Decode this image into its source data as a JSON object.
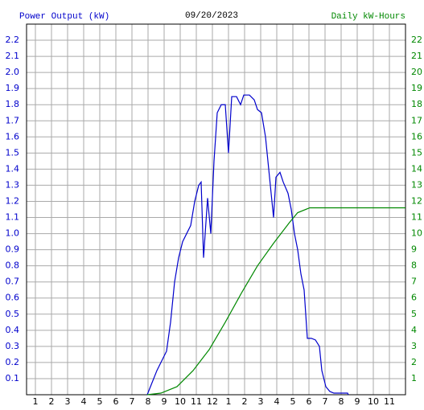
{
  "chart_data": {
    "type": "line",
    "title": "09/20/2023",
    "xlim": [
      0.45,
      24
    ],
    "xticks": [
      1,
      2,
      3,
      4,
      5,
      6,
      7,
      8,
      9,
      10,
      11,
      12,
      {
        "value": 13,
        "label": "1"
      },
      {
        "value": 14,
        "label": "2"
      },
      {
        "value": 15,
        "label": "3"
      },
      {
        "value": 16,
        "label": "4"
      },
      {
        "value": 17,
        "label": "5"
      },
      {
        "value": 18,
        "label": "6"
      },
      {
        "value": 19,
        "label": "7"
      },
      {
        "value": 20,
        "label": "8"
      },
      {
        "value": 21,
        "label": "9"
      },
      {
        "value": 22,
        "label": "10"
      },
      {
        "value": 23,
        "label": "11"
      }
    ],
    "ylim": [
      0,
      2.3
    ],
    "yticks": [
      0.1,
      0.2,
      0.3,
      0.4,
      0.5,
      0.6,
      0.7,
      0.8,
      0.9,
      {
        "value": 1,
        "label": "1.0"
      },
      1.1,
      1.2,
      1.3,
      1.4,
      1.5,
      1.6,
      1.7,
      1.8,
      1.9,
      {
        "value": 2,
        "label": "2.0"
      },
      2.1,
      2.2
    ],
    "y2lim": [
      0,
      23
    ],
    "y2ticks": [
      1,
      2,
      3,
      4,
      5,
      6,
      7,
      8,
      9,
      10,
      11,
      12,
      13,
      14,
      15,
      16,
      17,
      18,
      19,
      20,
      21,
      22
    ],
    "grid": true,
    "series": [
      {
        "name": "Power Output (kW)",
        "color": "#0000cc",
        "x": [
          7.95,
          8.15,
          8.55,
          8.8,
          9.15,
          9.4,
          9.65,
          9.9,
          10.15,
          10.4,
          10.65,
          10.9,
          11.15,
          11.3,
          11.45,
          11.7,
          11.9,
          12.1,
          12.3,
          12.55,
          12.8,
          13.0,
          13.2,
          13.5,
          13.75,
          13.95,
          14.3,
          14.6,
          14.8,
          15.05,
          15.3,
          15.55,
          15.8,
          15.95,
          16.2,
          16.4,
          16.7,
          16.9,
          17.1,
          17.3,
          17.5,
          17.7,
          17.9,
          18.15,
          18.4,
          18.65,
          18.8,
          19.05,
          19.3,
          19.55,
          20.4,
          20.45
        ],
        "values": [
          0,
          0.05,
          0.15,
          0.2,
          0.27,
          0.45,
          0.7,
          0.85,
          0.95,
          1.0,
          1.05,
          1.2,
          1.3,
          1.32,
          0.85,
          1.22,
          1.0,
          1.45,
          1.75,
          1.8,
          1.8,
          1.5,
          1.85,
          1.85,
          1.8,
          1.86,
          1.86,
          1.83,
          1.77,
          1.75,
          1.6,
          1.35,
          1.1,
          1.35,
          1.38,
          1.32,
          1.25,
          1.15,
          1.0,
          0.9,
          0.75,
          0.65,
          0.35,
          0.35,
          0.34,
          0.3,
          0.15,
          0.05,
          0.02,
          0.01,
          0.01,
          0
        ]
      },
      {
        "name": "Daily kW-Hours",
        "color": "#008800",
        "axis": "y2",
        "x": [
          7.95,
          8.8,
          9.8,
          10.8,
          11.8,
          12.8,
          13.8,
          14.8,
          15.8,
          16.8,
          17.3,
          18.05,
          18.8,
          24.0
        ],
        "values": [
          0,
          0.1,
          0.5,
          1.5,
          2.8,
          4.5,
          6.3,
          8.0,
          9.4,
          10.7,
          11.3,
          11.6,
          11.6,
          11.6
        ]
      }
    ]
  }
}
